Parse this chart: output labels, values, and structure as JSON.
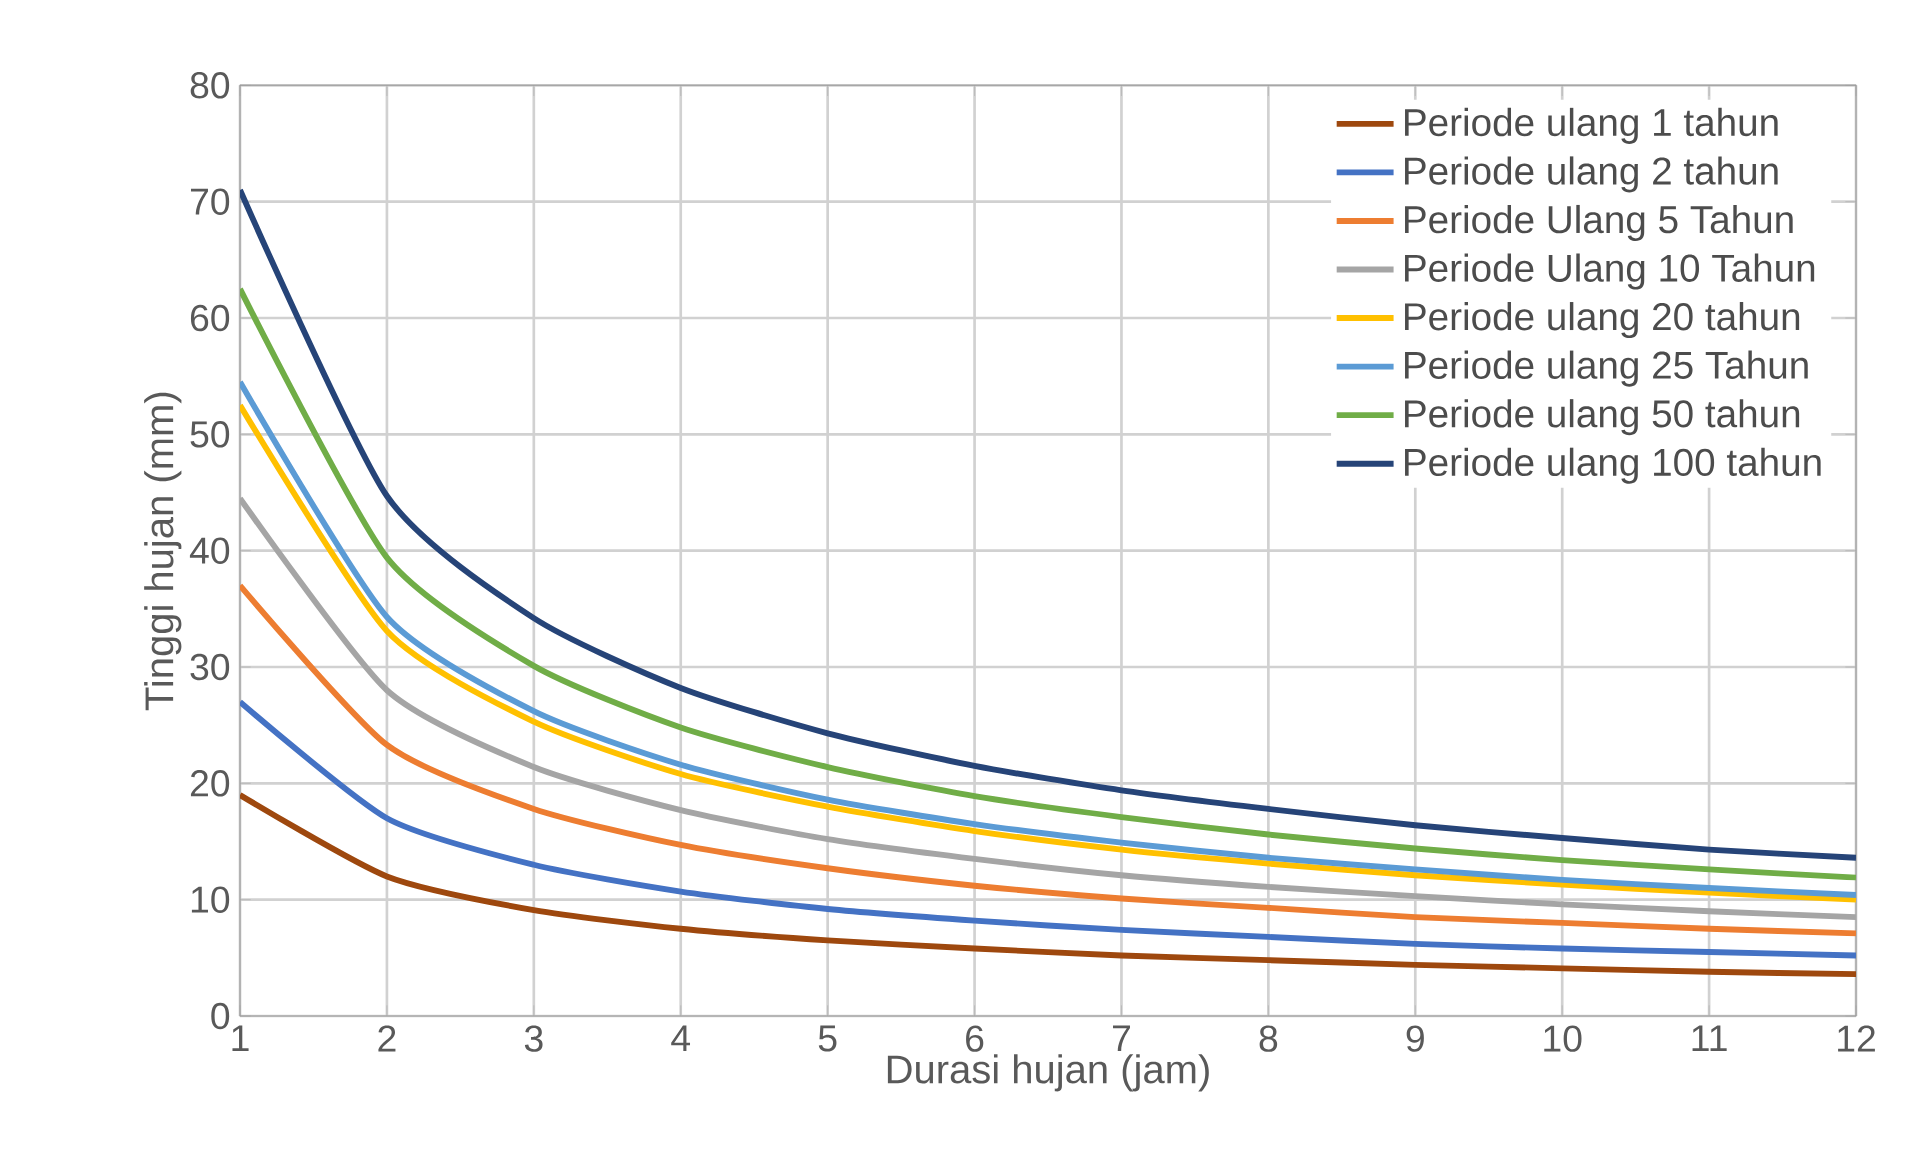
{
  "chart_data": {
    "type": "line",
    "xlabel": "Durasi hujan (jam)",
    "ylabel": "Tinggi hujan (mm)",
    "x": [
      1,
      2,
      3,
      4,
      5,
      6,
      7,
      8,
      9,
      10,
      11,
      12
    ],
    "xlim": [
      1,
      12
    ],
    "xticks": [
      1,
      2,
      3,
      4,
      5,
      6,
      7,
      8,
      9,
      10,
      11,
      12
    ],
    "ylim": [
      0,
      80
    ],
    "yticks": [
      0,
      10,
      20,
      30,
      40,
      50,
      60,
      70,
      80
    ],
    "grid": true,
    "legend": "top right",
    "marker": "none",
    "line_style": "solid",
    "series": [
      {
        "name": "Periode ulang 1 tahun",
        "color": "#9e480e",
        "values": [
          19,
          12.0,
          9.1,
          7.5,
          6.5,
          5.8,
          5.2,
          4.8,
          4.4,
          4.1,
          3.8,
          3.6
        ]
      },
      {
        "name": "Periode ulang 2 tahun",
        "color": "#4472c4",
        "values": [
          27,
          17.0,
          13.0,
          10.7,
          9.2,
          8.2,
          7.4,
          6.8,
          6.2,
          5.8,
          5.5,
          5.2
        ]
      },
      {
        "name": "Periode Ulang 5 Tahun",
        "color": "#ed7d31",
        "values": [
          37,
          23.3,
          17.8,
          14.7,
          12.7,
          11.2,
          10.1,
          9.3,
          8.5,
          8.0,
          7.5,
          7.1
        ]
      },
      {
        "name": "Periode Ulang 10 Tahun",
        "color": "#a5a5a5",
        "values": [
          44.5,
          28.0,
          21.4,
          17.7,
          15.2,
          13.5,
          12.1,
          11.1,
          10.3,
          9.6,
          9.0,
          8.5
        ]
      },
      {
        "name": "Periode ulang 20 tahun",
        "color": "#ffc000",
        "values": [
          52.5,
          33.1,
          25.3,
          20.8,
          18.0,
          15.9,
          14.3,
          13.1,
          12.1,
          11.3,
          10.6,
          10.0
        ]
      },
      {
        "name": "Periode ulang 25 Tahun",
        "color": "#5b9bd5",
        "values": [
          54.5,
          34.3,
          26.2,
          21.6,
          18.6,
          16.5,
          14.9,
          13.6,
          12.6,
          11.7,
          11.0,
          10.4
        ]
      },
      {
        "name": "Periode ulang 50 tahun",
        "color": "#70ad47",
        "values": [
          62.5,
          39.4,
          30.1,
          24.8,
          21.4,
          18.9,
          17.1,
          15.6,
          14.4,
          13.4,
          12.6,
          11.9
        ]
      },
      {
        "name": "Periode ulang 100 tahun",
        "color": "#264478",
        "values": [
          71,
          44.7,
          34.2,
          28.2,
          24.3,
          21.5,
          19.4,
          17.8,
          16.4,
          15.3,
          14.3,
          13.6
        ]
      }
    ]
  }
}
